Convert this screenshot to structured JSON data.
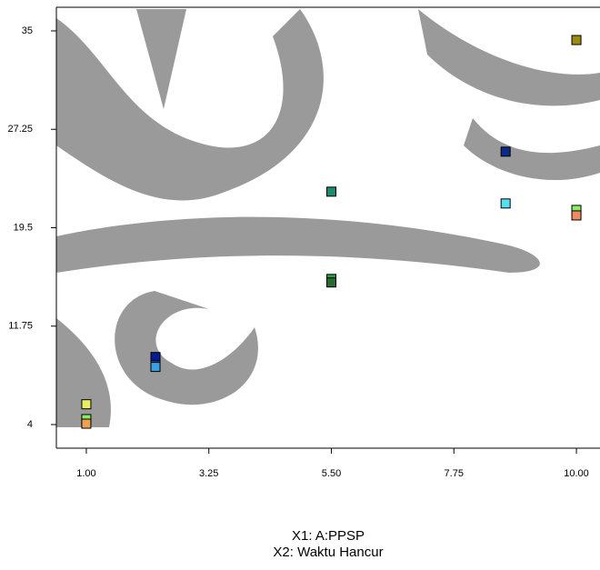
{
  "chart_data": {
    "type": "scatter",
    "x1_label": "X1: A:PPSP",
    "x2_label": "X2: Waktu Hancur",
    "x": [
      10,
      8.7,
      8.7,
      10,
      10,
      5.5,
      5.5,
      5.5,
      2.27,
      2.27,
      2.27,
      1,
      1,
      1
    ],
    "values": [
      34.28,
      25.49,
      21.41,
      20.9,
      20.47,
      22.34,
      15.47,
      15.19,
      9.32,
      8.68,
      8.54,
      5.6,
      4.43,
      4.07
    ],
    "colors": [
      "#9a8a10",
      "#0a2a8a",
      "#55e0f0",
      "#88ee66",
      "#f08a60",
      "#1a8a70",
      "#22a040",
      "#2a6a30",
      "#0a1a90",
      "#1a50c0",
      "#3aa0e0",
      "#e8f060",
      "#88ee66",
      "#f0a050"
    ],
    "xlim": [
      0.45,
      10.45
    ],
    "ylim": [
      2.14,
      36.86
    ],
    "xticks": [
      {
        "value": 1,
        "label": "1.00"
      },
      {
        "value": 3.25,
        "label": "3.25"
      },
      {
        "value": 5.5,
        "label": "5.50"
      },
      {
        "value": 7.75,
        "label": "7.75"
      },
      {
        "value": 10,
        "label": "10.00"
      }
    ],
    "yticks": [
      35,
      27.25,
      19.5,
      11.75,
      4
    ]
  }
}
